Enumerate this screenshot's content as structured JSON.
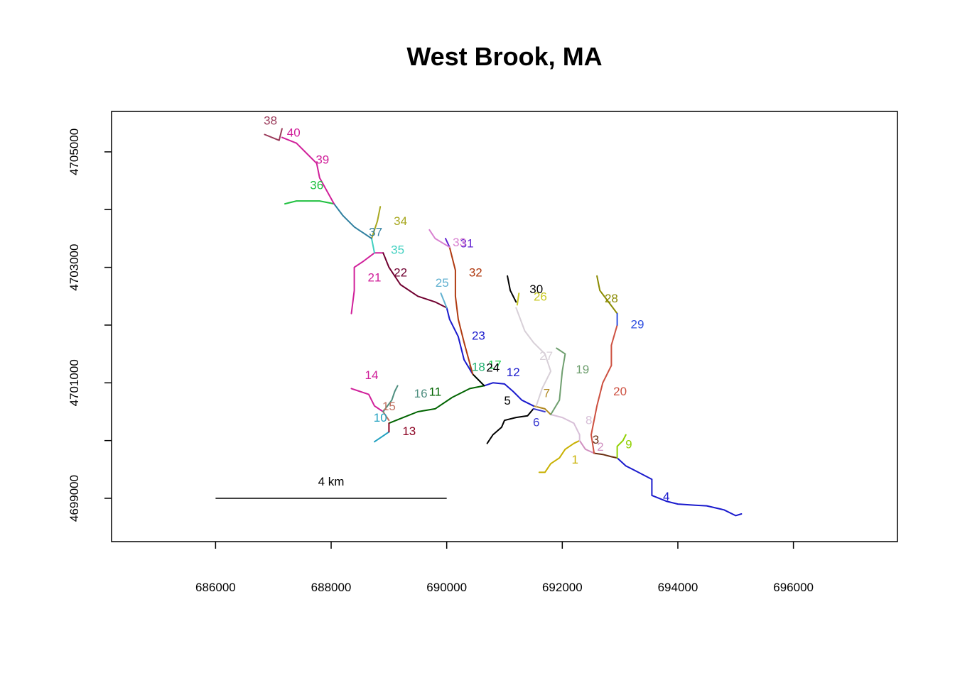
{
  "title": "West Brook, MA",
  "map": {
    "x_ticks": [
      686000,
      688000,
      690000,
      692000,
      694000,
      696000
    ],
    "y_ticks": [
      4699000,
      4701000,
      4703000,
      4705000
    ],
    "y_minor_ticks": [
      4700000,
      4702000,
      4704000
    ],
    "x_range": [
      684200,
      697800
    ],
    "y_range": [
      4698250,
      4705700
    ],
    "scale_bar": {
      "label": "4 km",
      "x_start": 686000,
      "x_end": 690000,
      "y": 4699000
    },
    "segments": [
      {
        "id": "1",
        "color": "#C8B000",
        "label_at": [
          692220,
          4699660
        ],
        "coords": [
          [
            691600,
            4699450
          ],
          [
            691700,
            4699450
          ],
          [
            691800,
            4699600
          ],
          [
            691950,
            4699700
          ],
          [
            692050,
            4699850
          ],
          [
            692200,
            4699950
          ],
          [
            692300,
            4700000
          ]
        ]
      },
      {
        "id": "2",
        "color": "#D090C0",
        "label_at": [
          692660,
          4699880
        ],
        "coords": [
          [
            692300,
            4700000
          ],
          [
            692400,
            4699850
          ],
          [
            692550,
            4699780
          ]
        ]
      },
      {
        "id": "3",
        "color": "#6A2E12",
        "label_at": [
          692580,
          4700000
        ],
        "coords": [
          [
            692550,
            4699780
          ],
          [
            692700,
            4699760
          ],
          [
            692850,
            4699720
          ],
          [
            692950,
            4699700
          ]
        ]
      },
      {
        "id": "4",
        "color": "#1A1ACD",
        "label_at": [
          693800,
          4699020
        ],
        "coords": [
          [
            692950,
            4699700
          ],
          [
            693100,
            4699560
          ],
          [
            693300,
            4699460
          ],
          [
            693550,
            4699330
          ],
          [
            693550,
            4699050
          ],
          [
            693800,
            4698950
          ],
          [
            694000,
            4698900
          ],
          [
            694300,
            4698880
          ],
          [
            694500,
            4698870
          ],
          [
            694800,
            4698800
          ],
          [
            695000,
            4698700
          ],
          [
            695100,
            4698730
          ]
        ]
      },
      {
        "id": "5",
        "color": "#000000",
        "label_at": [
          691050,
          4700680
        ],
        "coords": [
          [
            690700,
            4699950
          ],
          [
            690800,
            4700100
          ],
          [
            690950,
            4700230
          ],
          [
            691000,
            4700350
          ],
          [
            691200,
            4700400
          ],
          [
            691400,
            4700430
          ],
          [
            691500,
            4700550
          ]
        ]
      },
      {
        "id": "6",
        "color": "#3A3AD0",
        "label_at": [
          691550,
          4700300
        ],
        "coords": [
          [
            691500,
            4700550
          ],
          [
            691700,
            4700500
          ]
        ]
      },
      {
        "id": "7",
        "color": "#B08820",
        "label_at": [
          691730,
          4700810
        ],
        "coords": [
          [
            691500,
            4700600
          ],
          [
            691700,
            4700550
          ],
          [
            691800,
            4700450
          ]
        ]
      },
      {
        "id": "8",
        "color": "#D8C0D8",
        "label_at": [
          692460,
          4700340
        ],
        "coords": [
          [
            691800,
            4700450
          ],
          [
            692000,
            4700400
          ],
          [
            692200,
            4700300
          ],
          [
            692300,
            4700100
          ],
          [
            692300,
            4700000
          ]
        ]
      },
      {
        "id": "9",
        "color": "#90D000",
        "label_at": [
          693150,
          4699920
        ],
        "coords": [
          [
            692950,
            4699700
          ],
          [
            692950,
            4699900
          ],
          [
            693050,
            4700000
          ],
          [
            693100,
            4700100
          ]
        ]
      },
      {
        "id": "10",
        "color": "#20A0C0",
        "label_at": [
          688850,
          4700380
        ],
        "coords": [
          [
            688750,
            4699980
          ],
          [
            688900,
            4700080
          ],
          [
            689000,
            4700150
          ]
        ]
      },
      {
        "id": "11",
        "color": "#006400",
        "label_at": [
          689800,
          4700830
        ],
        "coords": [
          [
            689000,
            4700300
          ],
          [
            689250,
            4700400
          ],
          [
            689500,
            4700500
          ],
          [
            689800,
            4700550
          ],
          [
            690100,
            4700750
          ],
          [
            690400,
            4700900
          ],
          [
            690650,
            4700950
          ]
        ]
      },
      {
        "id": "12",
        "color": "#1A1ACD",
        "label_at": [
          691150,
          4701170
        ],
        "coords": [
          [
            690650,
            4700950
          ],
          [
            690800,
            4701000
          ],
          [
            691000,
            4700980
          ],
          [
            691150,
            4700850
          ],
          [
            691300,
            4700700
          ],
          [
            691500,
            4700600
          ]
        ]
      },
      {
        "id": "13",
        "color": "#8B0020",
        "label_at": [
          689350,
          4700150
        ],
        "coords": [
          [
            689000,
            4700300
          ],
          [
            689000,
            4700150
          ]
        ]
      },
      {
        "id": "14",
        "color": "#D0209A",
        "label_at": [
          688700,
          4701120
        ],
        "coords": [
          [
            688350,
            4700900
          ],
          [
            688500,
            4700850
          ],
          [
            688650,
            4700800
          ],
          [
            688750,
            4700600
          ],
          [
            688900,
            4700500
          ]
        ]
      },
      {
        "id": "15",
        "color": "#C07060",
        "label_at": [
          689000,
          4700580
        ],
        "coords": [
          [
            688900,
            4700500
          ],
          [
            689000,
            4700350
          ]
        ]
      },
      {
        "id": "16",
        "color": "#4F8F80",
        "label_at": [
          689550,
          4700800
        ],
        "coords": [
          [
            688900,
            4700500
          ],
          [
            689050,
            4700700
          ],
          [
            689100,
            4700850
          ],
          [
            689150,
            4700950
          ]
        ]
      },
      {
        "id": "17",
        "color": "#20D050",
        "label_at": [
          690830,
          4701300
        ],
        "coords": [
          [
            690650,
            4700950
          ],
          [
            690450,
            4701150
          ]
        ]
      },
      {
        "id": "18",
        "color": "#20B070",
        "label_at": [
          690550,
          4701260
        ],
        "coords": [
          [
            690450,
            4701150
          ],
          [
            690400,
            4701300
          ]
        ]
      },
      {
        "id": "19",
        "color": "#6F9F6F",
        "label_at": [
          692350,
          4701220
        ],
        "coords": [
          [
            691800,
            4700450
          ],
          [
            691950,
            4700700
          ],
          [
            692000,
            4701200
          ],
          [
            692050,
            4701500
          ],
          [
            691900,
            4701600
          ]
        ]
      },
      {
        "id": "20",
        "color": "#CD5040",
        "label_at": [
          693000,
          4700840
        ],
        "coords": [
          [
            692550,
            4699780
          ],
          [
            692500,
            4700100
          ],
          [
            692600,
            4700600
          ],
          [
            692700,
            4701000
          ],
          [
            692850,
            4701300
          ],
          [
            692850,
            4701650
          ],
          [
            692950,
            4702000
          ]
        ]
      },
      {
        "id": "21",
        "color": "#D0209A",
        "label_at": [
          688750,
          4702810
        ],
        "coords": [
          [
            688350,
            4702200
          ],
          [
            688400,
            4702600
          ],
          [
            688400,
            4703000
          ],
          [
            688550,
            4703100
          ],
          [
            688750,
            4703250
          ],
          [
            688900,
            4703250
          ]
        ]
      },
      {
        "id": "22",
        "color": "#700030",
        "label_at": [
          689200,
          4702900
        ],
        "coords": [
          [
            688900,
            4703250
          ],
          [
            689000,
            4703000
          ],
          [
            689200,
            4702700
          ],
          [
            689500,
            4702500
          ],
          [
            689800,
            4702400
          ],
          [
            690000,
            4702300
          ]
        ]
      },
      {
        "id": "23",
        "color": "#1A1ACD",
        "label_at": [
          690550,
          4701800
        ],
        "coords": [
          [
            690000,
            4702300
          ],
          [
            690050,
            4702100
          ],
          [
            690200,
            4701800
          ],
          [
            690300,
            4701400
          ],
          [
            690450,
            4701150
          ]
        ]
      },
      {
        "id": "24",
        "color": "#000000",
        "label_at": [
          690800,
          4701250
        ],
        "coords": [
          [
            690450,
            4701150
          ],
          [
            690650,
            4700950
          ]
        ]
      },
      {
        "id": "25",
        "color": "#60B0D0",
        "label_at": [
          689920,
          4702720
        ],
        "coords": [
          [
            689900,
            4702550
          ],
          [
            690000,
            4702300
          ]
        ]
      },
      {
        "id": "26",
        "color": "#C8C820",
        "label_at": [
          691620,
          4702480
        ],
        "coords": [
          [
            691220,
            4702350
          ],
          [
            691250,
            4702550
          ]
        ]
      },
      {
        "id": "27",
        "color": "#D8D0D8",
        "label_at": [
          691720,
          4701450
        ],
        "coords": [
          [
            691550,
            4700600
          ],
          [
            691650,
            4700900
          ],
          [
            691800,
            4701200
          ],
          [
            691700,
            4701500
          ],
          [
            691500,
            4701700
          ],
          [
            691350,
            4701900
          ],
          [
            691200,
            4702300
          ]
        ]
      },
      {
        "id": "28",
        "color": "#8A8A00",
        "label_at": [
          692850,
          4702450
        ],
        "coords": [
          [
            692600,
            4702850
          ],
          [
            692650,
            4702600
          ],
          [
            692800,
            4702400
          ],
          [
            692950,
            4702200
          ]
        ]
      },
      {
        "id": "29",
        "color": "#3050E0",
        "label_at": [
          693300,
          4702000
        ],
        "coords": [
          [
            692950,
            4702200
          ],
          [
            692950,
            4702000
          ]
        ]
      },
      {
        "id": "30",
        "color": "#000000",
        "label_at": [
          691550,
          4702610
        ],
        "coords": [
          [
            691050,
            4702850
          ],
          [
            691100,
            4702600
          ],
          [
            691200,
            4702400
          ]
        ]
      },
      {
        "id": "31",
        "color": "#6020D0",
        "label_at": [
          690350,
          4703400
        ],
        "coords": [
          [
            689980,
            4703500
          ],
          [
            690050,
            4703350
          ]
        ]
      },
      {
        "id": "32",
        "color": "#B03A10",
        "label_at": [
          690500,
          4702900
        ],
        "coords": [
          [
            690050,
            4703350
          ],
          [
            690150,
            4702950
          ],
          [
            690150,
            4702500
          ],
          [
            690200,
            4702100
          ],
          [
            690300,
            4701700
          ],
          [
            690450,
            4701150
          ]
        ]
      },
      {
        "id": "33",
        "color": "#D880D0",
        "label_at": [
          690220,
          4703420
        ],
        "coords": [
          [
            689700,
            4703650
          ],
          [
            689800,
            4703500
          ],
          [
            690050,
            4703350
          ]
        ]
      },
      {
        "id": "34",
        "color": "#A8A820",
        "label_at": [
          689200,
          4703790
        ],
        "coords": [
          [
            688700,
            4703500
          ],
          [
            688800,
            4703800
          ],
          [
            688850,
            4704050
          ]
        ]
      },
      {
        "id": "35",
        "color": "#40D0C0",
        "label_at": [
          689150,
          4703290
        ],
        "coords": [
          [
            688700,
            4703500
          ],
          [
            688750,
            4703250
          ]
        ]
      },
      {
        "id": "36",
        "color": "#20C040",
        "label_at": [
          687750,
          4704410
        ],
        "coords": [
          [
            687200,
            4704100
          ],
          [
            687400,
            4704150
          ],
          [
            687800,
            4704150
          ],
          [
            688050,
            4704100
          ]
        ]
      },
      {
        "id": "37",
        "color": "#3080A0",
        "label_at": [
          688770,
          4703600
        ],
        "coords": [
          [
            688050,
            4704100
          ],
          [
            688200,
            4703900
          ],
          [
            688400,
            4703700
          ],
          [
            688700,
            4703500
          ]
        ]
      },
      {
        "id": "38",
        "color": "#9A3A5A",
        "label_at": [
          686950,
          4705530
        ],
        "coords": [
          [
            686850,
            4705300
          ],
          [
            687100,
            4705200
          ],
          [
            687150,
            4705400
          ]
        ]
      },
      {
        "id": "39",
        "color": "#D0209A",
        "label_at": [
          687850,
          4704850
        ],
        "coords": [
          [
            687400,
            4705150
          ],
          [
            687600,
            4704950
          ],
          [
            687750,
            4704800
          ],
          [
            687800,
            4704550
          ],
          [
            688050,
            4704100
          ]
        ]
      },
      {
        "id": "40",
        "color": "#D0209A",
        "label_at": [
          687350,
          4705320
        ],
        "coords": [
          [
            687150,
            4705250
          ],
          [
            687400,
            4705150
          ]
        ]
      }
    ]
  }
}
